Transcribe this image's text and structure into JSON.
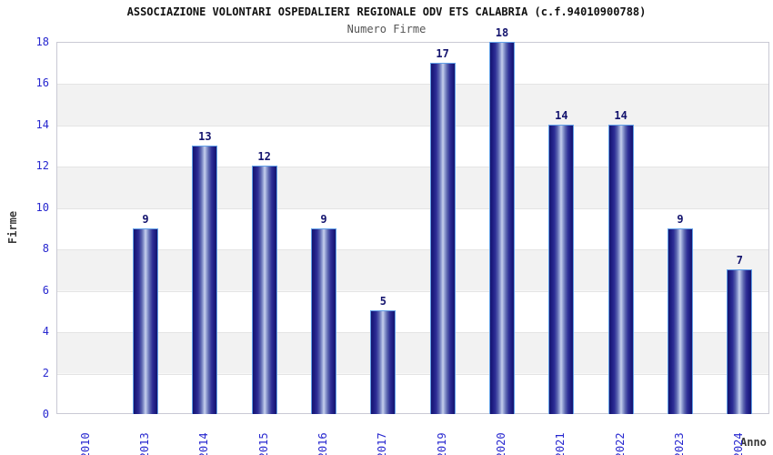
{
  "header": {
    "title": "ASSOCIAZIONE VOLONTARI OSPEDALIERI REGIONALE ODV ETS CALABRIA (c.f.94010900788)",
    "subtitle": "Numero Firme"
  },
  "chart_data": {
    "type": "bar",
    "title": "ASSOCIAZIONE VOLONTARI OSPEDALIERI REGIONALE ODV ETS CALABRIA (c.f.94010900788)",
    "subtitle": "Numero Firme",
    "categories": [
      "2010",
      "2013",
      "2014",
      "2015",
      "2016",
      "2017",
      "2019",
      "2020",
      "2021",
      "2022",
      "2023",
      "2024"
    ],
    "values": [
      0,
      9,
      13,
      12,
      9,
      5,
      17,
      18,
      14,
      14,
      9,
      7
    ],
    "xlabel": "Anno",
    "ylabel": "Firme",
    "ylim": [
      0,
      18
    ],
    "ytick_step": 2,
    "grid": "alternating-horizontal-bands",
    "legend": "none",
    "bar_value_labels_visible": true,
    "zero_bars_hidden": true
  },
  "colors": {
    "bar_dark": "#15156e",
    "bar_highlight": "#c7d1ed",
    "bar_border": "#62a0e8",
    "tick_label": "#2727cf",
    "value_label": "#14146e",
    "band_gray": "#f2f2f2",
    "band_white": "#ffffff",
    "plot_border": "#c9c9d4",
    "title_text": "#111111",
    "subtitle_text": "#555555",
    "axis_title_text": "#3a3a3a"
  }
}
